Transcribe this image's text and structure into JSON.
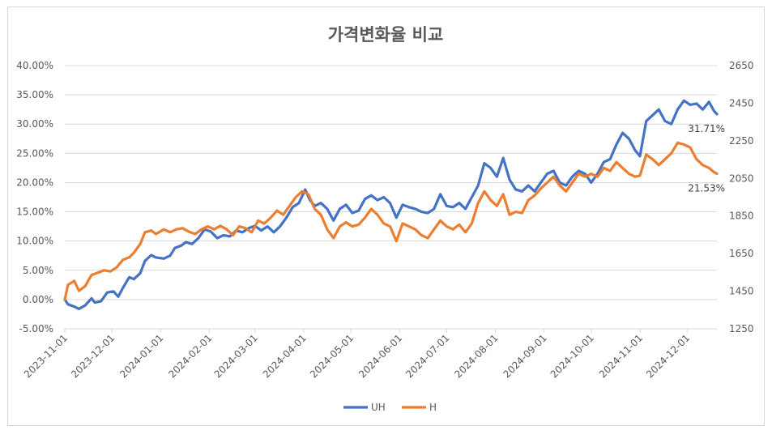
{
  "chart_data": {
    "type": "line",
    "title": "가격변화율 비교",
    "x_tick_labels": [
      "2023-11-01",
      "2023-12-01",
      "2024-01-01",
      "2024-02-01",
      "2024-03-01",
      "2024-04-01",
      "2024-05-01",
      "2024-06-01",
      "2024-07-01",
      "2024-08-01",
      "2024-09-01",
      "2024-10-01",
      "2024-11-01",
      "2024-12-01"
    ],
    "y_left": {
      "min": -5,
      "max": 40,
      "step": 5,
      "tick_labels": [
        "-5.00%",
        "0.00%",
        "5.00%",
        "10.00%",
        "15.00%",
        "20.00%",
        "25.00%",
        "30.00%",
        "35.00%",
        "40.00%"
      ]
    },
    "y_right": {
      "min": 1250,
      "max": 2650,
      "step": 200,
      "tick_labels": [
        "1250",
        "1450",
        "1650",
        "1850",
        "2050",
        "2250",
        "2450",
        "2650"
      ]
    },
    "grid": true,
    "legend_position": "bottom",
    "series": [
      {
        "name": "UH",
        "color": "#4472c4",
        "end_label": "31.71%",
        "points": [
          [
            "2023-11-01",
            0.0
          ],
          [
            "2023-11-03",
            -0.8
          ],
          [
            "2023-11-07",
            -1.2
          ],
          [
            "2023-11-10",
            -1.6
          ],
          [
            "2023-11-14",
            -1.0
          ],
          [
            "2023-11-18",
            0.2
          ],
          [
            "2023-11-20",
            -0.5
          ],
          [
            "2023-11-24",
            -0.3
          ],
          [
            "2023-11-28",
            1.2
          ],
          [
            "2023-12-02",
            1.4
          ],
          [
            "2023-12-05",
            0.5
          ],
          [
            "2023-12-08",
            2.0
          ],
          [
            "2023-12-12",
            3.8
          ],
          [
            "2023-12-15",
            3.5
          ],
          [
            "2023-12-19",
            4.5
          ],
          [
            "2023-12-22",
            6.6
          ],
          [
            "2023-12-26",
            7.6
          ],
          [
            "2023-12-29",
            7.2
          ],
          [
            "2024-01-03",
            7.0
          ],
          [
            "2024-01-07",
            7.5
          ],
          [
            "2024-01-10",
            8.8
          ],
          [
            "2024-01-14",
            9.2
          ],
          [
            "2024-01-17",
            9.8
          ],
          [
            "2024-01-21",
            9.5
          ],
          [
            "2024-01-25",
            10.5
          ],
          [
            "2024-01-29",
            12.0
          ],
          [
            "2024-02-02",
            11.6
          ],
          [
            "2024-02-06",
            10.5
          ],
          [
            "2024-02-10",
            11.0
          ],
          [
            "2024-02-14",
            10.8
          ],
          [
            "2024-02-18",
            11.8
          ],
          [
            "2024-02-22",
            11.5
          ],
          [
            "2024-02-26",
            12.2
          ],
          [
            "2024-03-01",
            12.6
          ],
          [
            "2024-03-05",
            11.8
          ],
          [
            "2024-03-09",
            12.5
          ],
          [
            "2024-03-13",
            11.5
          ],
          [
            "2024-03-17",
            12.5
          ],
          [
            "2024-03-21",
            14.0
          ],
          [
            "2024-03-25",
            15.8
          ],
          [
            "2024-03-29",
            16.5
          ],
          [
            "2024-04-02",
            18.8
          ],
          [
            "2024-04-05",
            17.0
          ],
          [
            "2024-04-08",
            16.0
          ],
          [
            "2024-04-12",
            16.5
          ],
          [
            "2024-04-16",
            15.5
          ],
          [
            "2024-04-20",
            13.5
          ],
          [
            "2024-04-24",
            15.5
          ],
          [
            "2024-04-28",
            16.2
          ],
          [
            "2024-05-02",
            14.8
          ],
          [
            "2024-05-06",
            15.2
          ],
          [
            "2024-05-10",
            17.2
          ],
          [
            "2024-05-14",
            17.8
          ],
          [
            "2024-05-18",
            17.0
          ],
          [
            "2024-05-22",
            17.5
          ],
          [
            "2024-05-26",
            16.5
          ],
          [
            "2024-05-30",
            14.0
          ],
          [
            "2024-06-03",
            16.2
          ],
          [
            "2024-06-07",
            15.8
          ],
          [
            "2024-06-11",
            15.5
          ],
          [
            "2024-06-15",
            15.0
          ],
          [
            "2024-06-19",
            14.8
          ],
          [
            "2024-06-23",
            15.5
          ],
          [
            "2024-06-27",
            18.0
          ],
          [
            "2024-07-01",
            16.0
          ],
          [
            "2024-07-05",
            15.8
          ],
          [
            "2024-07-09",
            16.5
          ],
          [
            "2024-07-13",
            15.5
          ],
          [
            "2024-07-17",
            17.5
          ],
          [
            "2024-07-21",
            19.5
          ],
          [
            "2024-07-25",
            23.3
          ],
          [
            "2024-07-29",
            22.5
          ],
          [
            "2024-08-02",
            21.0
          ],
          [
            "2024-08-06",
            24.2
          ],
          [
            "2024-08-10",
            20.5
          ],
          [
            "2024-08-14",
            18.8
          ],
          [
            "2024-08-18",
            18.5
          ],
          [
            "2024-08-22",
            19.5
          ],
          [
            "2024-08-26",
            18.5
          ],
          [
            "2024-08-30",
            20.0
          ],
          [
            "2024-09-03",
            21.5
          ],
          [
            "2024-09-07",
            22.0
          ],
          [
            "2024-09-11",
            20.0
          ],
          [
            "2024-09-15",
            19.5
          ],
          [
            "2024-09-19",
            21.0
          ],
          [
            "2024-09-23",
            22.0
          ],
          [
            "2024-09-27",
            21.5
          ],
          [
            "2024-10-01",
            20.0
          ],
          [
            "2024-10-05",
            21.5
          ],
          [
            "2024-10-09",
            23.5
          ],
          [
            "2024-10-13",
            24.0
          ],
          [
            "2024-10-17",
            26.5
          ],
          [
            "2024-10-21",
            28.5
          ],
          [
            "2024-10-25",
            27.5
          ],
          [
            "2024-10-29",
            25.5
          ],
          [
            "2024-11-01",
            24.5
          ],
          [
            "2024-11-05",
            30.5
          ],
          [
            "2024-11-09",
            31.5
          ],
          [
            "2024-11-13",
            32.5
          ],
          [
            "2024-11-17",
            30.5
          ],
          [
            "2024-11-21",
            30.0
          ],
          [
            "2024-11-25",
            32.5
          ],
          [
            "2024-11-29",
            34.0
          ],
          [
            "2024-12-03",
            33.3
          ],
          [
            "2024-12-07",
            33.5
          ],
          [
            "2024-12-11",
            32.5
          ],
          [
            "2024-12-15",
            33.8
          ],
          [
            "2024-12-18",
            32.3
          ],
          [
            "2024-12-20",
            31.71
          ]
        ]
      },
      {
        "name": "H",
        "color": "#ed7d31",
        "end_label": "21.53%",
        "points": [
          [
            "2023-11-01",
            0.0
          ],
          [
            "2023-11-03",
            2.5
          ],
          [
            "2023-11-07",
            3.2
          ],
          [
            "2023-11-10",
            1.5
          ],
          [
            "2023-11-14",
            2.3
          ],
          [
            "2023-11-18",
            4.2
          ],
          [
            "2023-11-22",
            4.6
          ],
          [
            "2023-11-26",
            5.0
          ],
          [
            "2023-11-30",
            4.8
          ],
          [
            "2023-12-04",
            5.5
          ],
          [
            "2023-12-08",
            6.8
          ],
          [
            "2023-12-12",
            7.2
          ],
          [
            "2023-12-15",
            8.0
          ],
          [
            "2023-12-19",
            9.5
          ],
          [
            "2023-12-22",
            11.5
          ],
          [
            "2023-12-26",
            11.8
          ],
          [
            "2023-12-29",
            11.2
          ],
          [
            "2024-01-03",
            12.0
          ],
          [
            "2024-01-07",
            11.5
          ],
          [
            "2024-01-11",
            12.0
          ],
          [
            "2024-01-15",
            12.2
          ],
          [
            "2024-01-19",
            11.6
          ],
          [
            "2024-01-23",
            11.2
          ],
          [
            "2024-01-27",
            12.0
          ],
          [
            "2024-01-31",
            12.5
          ],
          [
            "2024-02-04",
            12.0
          ],
          [
            "2024-02-08",
            12.6
          ],
          [
            "2024-02-12",
            12.0
          ],
          [
            "2024-02-16",
            11.0
          ],
          [
            "2024-02-20",
            12.5
          ],
          [
            "2024-02-24",
            12.2
          ],
          [
            "2024-02-28",
            11.5
          ],
          [
            "2024-03-03",
            13.5
          ],
          [
            "2024-03-07",
            13.0
          ],
          [
            "2024-03-11",
            14.0
          ],
          [
            "2024-03-15",
            15.2
          ],
          [
            "2024-03-19",
            14.5
          ],
          [
            "2024-03-23",
            16.0
          ],
          [
            "2024-03-27",
            17.5
          ],
          [
            "2024-03-31",
            18.5
          ],
          [
            "2024-04-04",
            18.0
          ],
          [
            "2024-04-08",
            15.5
          ],
          [
            "2024-04-12",
            14.5
          ],
          [
            "2024-04-16",
            12.0
          ],
          [
            "2024-04-20",
            10.5
          ],
          [
            "2024-04-24",
            12.5
          ],
          [
            "2024-04-28",
            13.2
          ],
          [
            "2024-05-02",
            12.5
          ],
          [
            "2024-05-06",
            12.8
          ],
          [
            "2024-05-10",
            14.0
          ],
          [
            "2024-05-14",
            15.5
          ],
          [
            "2024-05-18",
            14.5
          ],
          [
            "2024-05-22",
            13.0
          ],
          [
            "2024-05-26",
            12.5
          ],
          [
            "2024-05-30",
            10.0
          ],
          [
            "2024-06-03",
            13.0
          ],
          [
            "2024-06-07",
            12.5
          ],
          [
            "2024-06-11",
            12.0
          ],
          [
            "2024-06-15",
            11.0
          ],
          [
            "2024-06-19",
            10.5
          ],
          [
            "2024-06-23",
            12.0
          ],
          [
            "2024-06-27",
            13.5
          ],
          [
            "2024-07-01",
            12.5
          ],
          [
            "2024-07-05",
            12.0
          ],
          [
            "2024-07-09",
            12.8
          ],
          [
            "2024-07-13",
            11.5
          ],
          [
            "2024-07-17",
            13.0
          ],
          [
            "2024-07-21",
            16.5
          ],
          [
            "2024-07-25",
            18.5
          ],
          [
            "2024-07-29",
            17.0
          ],
          [
            "2024-08-02",
            16.0
          ],
          [
            "2024-08-06",
            18.0
          ],
          [
            "2024-08-10",
            14.5
          ],
          [
            "2024-08-14",
            15.0
          ],
          [
            "2024-08-18",
            14.8
          ],
          [
            "2024-08-22",
            17.0
          ],
          [
            "2024-08-26",
            17.8
          ],
          [
            "2024-08-30",
            19.0
          ],
          [
            "2024-09-03",
            20.0
          ],
          [
            "2024-09-07",
            21.0
          ],
          [
            "2024-09-11",
            19.5
          ],
          [
            "2024-09-15",
            18.5
          ],
          [
            "2024-09-19",
            20.0
          ],
          [
            "2024-09-23",
            21.5
          ],
          [
            "2024-09-27",
            21.0
          ],
          [
            "2024-10-01",
            21.5
          ],
          [
            "2024-10-05",
            21.0
          ],
          [
            "2024-10-09",
            22.5
          ],
          [
            "2024-10-13",
            22.0
          ],
          [
            "2024-10-17",
            23.5
          ],
          [
            "2024-10-21",
            22.5
          ],
          [
            "2024-10-25",
            21.5
          ],
          [
            "2024-10-29",
            21.0
          ],
          [
            "2024-11-01",
            21.2
          ],
          [
            "2024-11-05",
            24.8
          ],
          [
            "2024-11-09",
            24.0
          ],
          [
            "2024-11-13",
            23.0
          ],
          [
            "2024-11-17",
            24.0
          ],
          [
            "2024-11-21",
            25.0
          ],
          [
            "2024-11-25",
            26.8
          ],
          [
            "2024-11-29",
            26.5
          ],
          [
            "2024-12-03",
            26.0
          ],
          [
            "2024-12-07",
            24.0
          ],
          [
            "2024-12-11",
            23.0
          ],
          [
            "2024-12-15",
            22.5
          ],
          [
            "2024-12-18",
            21.8
          ],
          [
            "2024-12-20",
            21.53
          ]
        ]
      }
    ]
  }
}
